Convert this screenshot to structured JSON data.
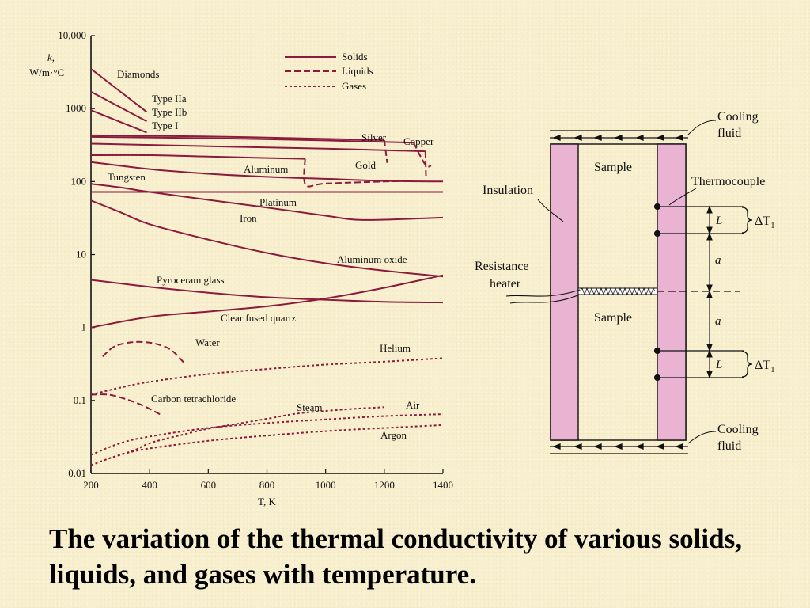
{
  "caption": "The variation of the thermal conductivity of various solids, liquids, and gases with temperature.",
  "colors": {
    "curve": "#8b1a3c",
    "insulation": "#eab3d2",
    "ink": "#111111"
  },
  "chart_data": {
    "type": "line",
    "title": "",
    "xlabel": "T, K",
    "ylabel_lines": [
      "k,",
      "W/m·°C"
    ],
    "xscale": "linear",
    "yscale": "log",
    "xlim": [
      200,
      1400
    ],
    "ylim": [
      0.01,
      10000
    ],
    "xticks": [
      200,
      400,
      600,
      800,
      1000,
      1200,
      1400
    ],
    "xtick_labels": [
      "200",
      "400",
      "600",
      "800",
      "1000",
      "1200",
      "1400"
    ],
    "yticks": [
      0.01,
      0.1,
      1,
      10,
      100,
      1000,
      10000
    ],
    "ytick_labels": [
      "0.01",
      "0.1",
      "1",
      "10",
      "100",
      "1000",
      "10,000"
    ],
    "legend": {
      "position": "top-right",
      "entries": [
        {
          "label": "Solids",
          "style": "solid"
        },
        {
          "label": "Liquids",
          "style": "dashed"
        },
        {
          "label": "Gases",
          "style": "dotted"
        }
      ]
    },
    "annotations": [
      {
        "text": "Diamonds",
        "x": 290,
        "y": 3500
      },
      {
        "text": "Aluminum oxide",
        "x": 1000,
        "y": 12
      }
    ],
    "series": [
      {
        "name": "Type IIa",
        "phase": "solid",
        "points": [
          [
            200,
            3500
          ],
          [
            390,
            900
          ]
        ]
      },
      {
        "name": "Type IIb",
        "phase": "solid",
        "points": [
          [
            200,
            1700
          ],
          [
            390,
            670
          ]
        ]
      },
      {
        "name": "Type I",
        "phase": "solid",
        "points": [
          [
            200,
            950
          ],
          [
            390,
            470
          ]
        ]
      },
      {
        "name": "Silver",
        "phase": "solid",
        "points": [
          [
            200,
            430
          ],
          [
            600,
            415
          ],
          [
            1000,
            385
          ],
          [
            1200,
            370
          ]
        ]
      },
      {
        "name": "",
        "phase": "liquid",
        "points": [
          [
            1200,
            370
          ],
          [
            1210,
            180
          ]
        ]
      },
      {
        "name": "Copper",
        "phase": "solid",
        "points": [
          [
            200,
            410
          ],
          [
            600,
            393
          ],
          [
            1000,
            366
          ],
          [
            1300,
            340
          ]
        ]
      },
      {
        "name": "",
        "phase": "liquid",
        "points": [
          [
            1300,
            340
          ],
          [
            1340,
            170
          ],
          [
            1360,
            165
          ]
        ]
      },
      {
        "name": "Gold",
        "phase": "solid",
        "points": [
          [
            200,
            330
          ],
          [
            600,
            305
          ],
          [
            1000,
            282
          ],
          [
            1340,
            260
          ]
        ]
      },
      {
        "name": "",
        "phase": "liquid",
        "points": [
          [
            1340,
            260
          ],
          [
            1342,
            120
          ]
        ]
      },
      {
        "name": "Aluminum",
        "phase": "solid",
        "points": [
          [
            200,
            230
          ],
          [
            400,
            230
          ],
          [
            600,
            220
          ],
          [
            800,
            210
          ],
          [
            930,
            205
          ]
        ]
      },
      {
        "name": "",
        "phase": "liquid",
        "points": [
          [
            930,
            205
          ],
          [
            932,
            90
          ],
          [
            1000,
            94
          ],
          [
            1200,
            100
          ],
          [
            1280,
            102
          ]
        ]
      },
      {
        "name": "Tungsten",
        "phase": "solid",
        "points": [
          [
            200,
            185
          ],
          [
            400,
            148
          ],
          [
            600,
            128
          ],
          [
            800,
            116
          ],
          [
            1000,
            109
          ],
          [
            1200,
            102
          ],
          [
            1400,
            100
          ]
        ]
      },
      {
        "name": "Platinum",
        "phase": "solid",
        "points": [
          [
            200,
            72
          ],
          [
            600,
            72
          ],
          [
            1000,
            72
          ],
          [
            1400,
            72
          ]
        ]
      },
      {
        "name": "Iron",
        "phase": "solid",
        "points": [
          [
            200,
            93
          ],
          [
            300,
            83
          ],
          [
            400,
            72
          ],
          [
            600,
            56
          ],
          [
            800,
            44
          ],
          [
            1000,
            34
          ],
          [
            1100,
            30
          ],
          [
            1200,
            30
          ],
          [
            1300,
            31
          ],
          [
            1400,
            32
          ]
        ]
      },
      {
        "name": "Aluminum oxide",
        "phase": "solid",
        "points": [
          [
            200,
            55
          ],
          [
            300,
            38
          ],
          [
            400,
            26
          ],
          [
            600,
            16
          ],
          [
            800,
            10.5
          ],
          [
            1000,
            7.6
          ],
          [
            1200,
            6.0
          ],
          [
            1400,
            5.0
          ]
        ]
      },
      {
        "name": "Pyroceram glass",
        "phase": "solid",
        "points": [
          [
            200,
            4.5
          ],
          [
            400,
            3.6
          ],
          [
            600,
            3.0
          ],
          [
            800,
            2.6
          ],
          [
            1000,
            2.4
          ],
          [
            1200,
            2.25
          ],
          [
            1400,
            2.2
          ]
        ]
      },
      {
        "name": "Clear fused quartz",
        "phase": "solid",
        "points": [
          [
            200,
            1.0
          ],
          [
            400,
            1.4
          ],
          [
            600,
            1.65
          ],
          [
            800,
            1.95
          ],
          [
            1000,
            2.5
          ],
          [
            1200,
            3.5
          ],
          [
            1400,
            5.2
          ]
        ]
      },
      {
        "name": "Water",
        "phase": "liquid",
        "points": [
          [
            240,
            0.4
          ],
          [
            280,
            0.55
          ],
          [
            340,
            0.63
          ],
          [
            400,
            0.62
          ],
          [
            450,
            0.55
          ],
          [
            480,
            0.47
          ],
          [
            500,
            0.39
          ],
          [
            520,
            0.32
          ]
        ]
      },
      {
        "name": "Carbon tetrachloride",
        "phase": "liquid",
        "points": [
          [
            200,
            0.12
          ],
          [
            260,
            0.12
          ],
          [
            320,
            0.104
          ],
          [
            380,
            0.084
          ],
          [
            440,
            0.063
          ]
        ]
      },
      {
        "name": "Helium",
        "phase": "gas",
        "points": [
          [
            200,
            0.12
          ],
          [
            300,
            0.15
          ],
          [
            400,
            0.18
          ],
          [
            600,
            0.23
          ],
          [
            800,
            0.27
          ],
          [
            1000,
            0.31
          ],
          [
            1200,
            0.34
          ],
          [
            1400,
            0.38
          ]
        ]
      },
      {
        "name": "Steam",
        "phase": "gas",
        "points": [
          [
            260,
            0.016
          ],
          [
            350,
            0.021
          ],
          [
            400,
            0.026
          ],
          [
            500,
            0.033
          ],
          [
            600,
            0.041
          ],
          [
            700,
            0.048
          ],
          [
            800,
            0.056
          ],
          [
            900,
            0.066
          ],
          [
            1000,
            0.072
          ],
          [
            1100,
            0.077
          ],
          [
            1200,
            0.081
          ]
        ]
      },
      {
        "name": "Air",
        "phase": "gas",
        "points": [
          [
            200,
            0.018
          ],
          [
            300,
            0.026
          ],
          [
            400,
            0.032
          ],
          [
            600,
            0.042
          ],
          [
            800,
            0.049
          ],
          [
            1000,
            0.055
          ],
          [
            1200,
            0.061
          ],
          [
            1400,
            0.065
          ]
        ]
      },
      {
        "name": "Argon",
        "phase": "gas",
        "points": [
          [
            200,
            0.013
          ],
          [
            300,
            0.018
          ],
          [
            400,
            0.022
          ],
          [
            600,
            0.028
          ],
          [
            800,
            0.033
          ],
          [
            1000,
            0.038
          ],
          [
            1200,
            0.042
          ],
          [
            1400,
            0.046
          ]
        ]
      }
    ]
  },
  "apparatus": {
    "labels": {
      "cooling_fluid_top": [
        "Cooling",
        "fluid"
      ],
      "cooling_fluid_bottom": [
        "Cooling",
        "fluid"
      ],
      "sample_top": "Sample",
      "sample_bottom": "Sample",
      "insulation": "Insulation",
      "thermocouple": "Thermocouple",
      "resistance_heater": [
        "Resistance",
        "heater"
      ],
      "dim_L": "L",
      "dim_a": "a",
      "delta_T_symbol": "ΔT",
      "delta_T_sub": "1"
    }
  }
}
